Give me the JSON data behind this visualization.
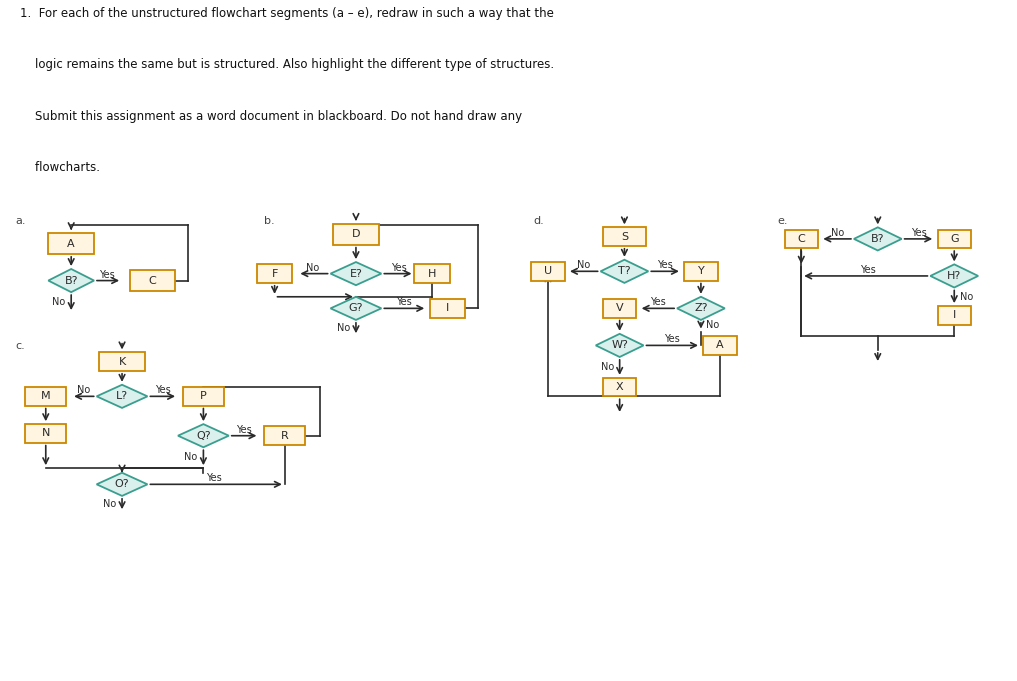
{
  "bg_color": "#dce6f0",
  "box_fc": "#fff5e0",
  "box_ec": "#cc8800",
  "dia_fc": "#d9f0ed",
  "dia_ec": "#3a9e8e",
  "arr_color": "#2a2a2a",
  "lbl_color": "#2a2a2a",
  "title_lines": [
    "1.  For each of the unstructured flowchart segments (a – e), redraw in such a way that the",
    "    logic remains the same but is structured. Also highlight the different type of structures.",
    "    Submit this assignment as a word document in blackboard. Do not hand draw any",
    "    flowcharts."
  ]
}
